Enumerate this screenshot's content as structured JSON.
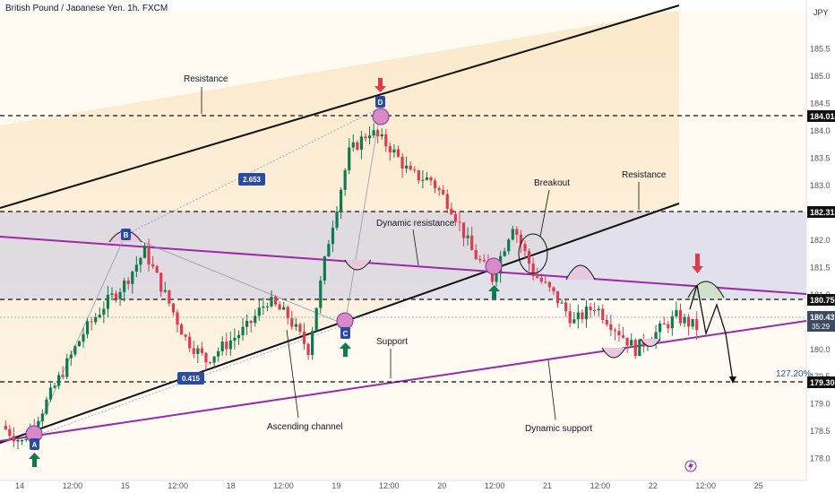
{
  "header": {
    "title": "British Pound / Japanese Yen, 1h, FXCM",
    "currency": "JPY"
  },
  "chart_data": {
    "type": "candlestick",
    "title": "British Pound / Japanese Yen, 1h, FXCM",
    "ylim": [
      177.6,
      186.2
    ],
    "y_ticks": [
      178.0,
      178.5,
      179.0,
      179.5,
      180.0,
      180.5,
      181.0,
      181.5,
      182.0,
      182.5,
      183.0,
      183.5,
      184.0,
      184.5,
      185.0,
      185.5
    ],
    "x_ticks": [
      "14",
      "12:00",
      "15",
      "12:00",
      "18",
      "12:00",
      "19",
      "12:00",
      "20",
      "12:00",
      "21",
      "12:00",
      "22",
      "12:00",
      "25"
    ],
    "price_levels": [
      {
        "price": "184.014",
        "value": 184.014
      },
      {
        "price": "182.319",
        "value": 182.319
      },
      {
        "price": "180.750",
        "value": 180.75
      },
      {
        "price": "180.437",
        "value": 180.437,
        "countdown": "35:29"
      },
      {
        "price": "179.300",
        "value": 179.3
      }
    ],
    "price_series": [
      178.6,
      178.3,
      178.9,
      179.6,
      180.3,
      180.8,
      181.2,
      181.8,
      181.0,
      180.2,
      179.8,
      180.1,
      180.4,
      180.9,
      180.6,
      180.0,
      182.0,
      183.6,
      184.0,
      183.7,
      183.2,
      183.1,
      182.6,
      181.8,
      181.3,
      182.3,
      181.4,
      181.0,
      180.5,
      180.8,
      180.4,
      180.0,
      180.3,
      180.6,
      180.4
    ],
    "annotations": [
      "Resistance",
      "Resistance",
      "Breakout",
      "Dynamic resistance",
      "Support",
      "Ascending channel",
      "Dynamic support"
    ],
    "labels": {
      "point_a": "A",
      "point_b": "B",
      "point_c": "C",
      "point_d": "D",
      "fib_1": "2.653",
      "fib_2": "0.415",
      "projection": "127.20%"
    }
  }
}
